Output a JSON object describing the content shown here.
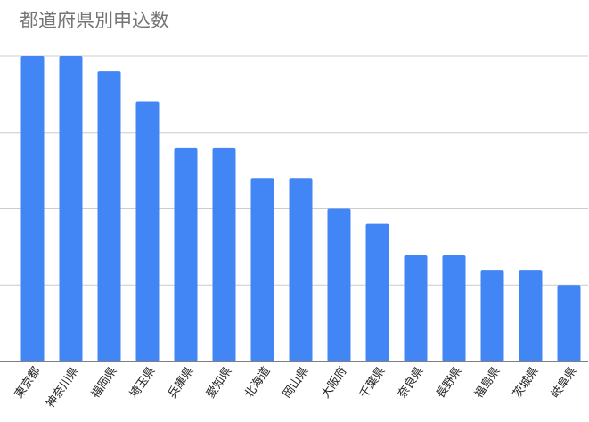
{
  "chart_data": {
    "type": "bar",
    "title": "都道府県別申込数",
    "categories": [
      "東京都",
      "神奈川県",
      "福岡県",
      "埼玉県",
      "兵庫県",
      "愛知県",
      "北海道",
      "岡山県",
      "大阪府",
      "千葉県",
      "奈良県",
      "長野県",
      "福島県",
      "茨城県",
      "岐阜県"
    ],
    "values": [
      20,
      20,
      19,
      17,
      14,
      14,
      12,
      12,
      10,
      9,
      7,
      7,
      6,
      6,
      5
    ],
    "color": "#4285f4",
    "ylim": [
      0,
      20
    ],
    "yticks": [
      0,
      5,
      10,
      15,
      20
    ],
    "grid": true
  }
}
